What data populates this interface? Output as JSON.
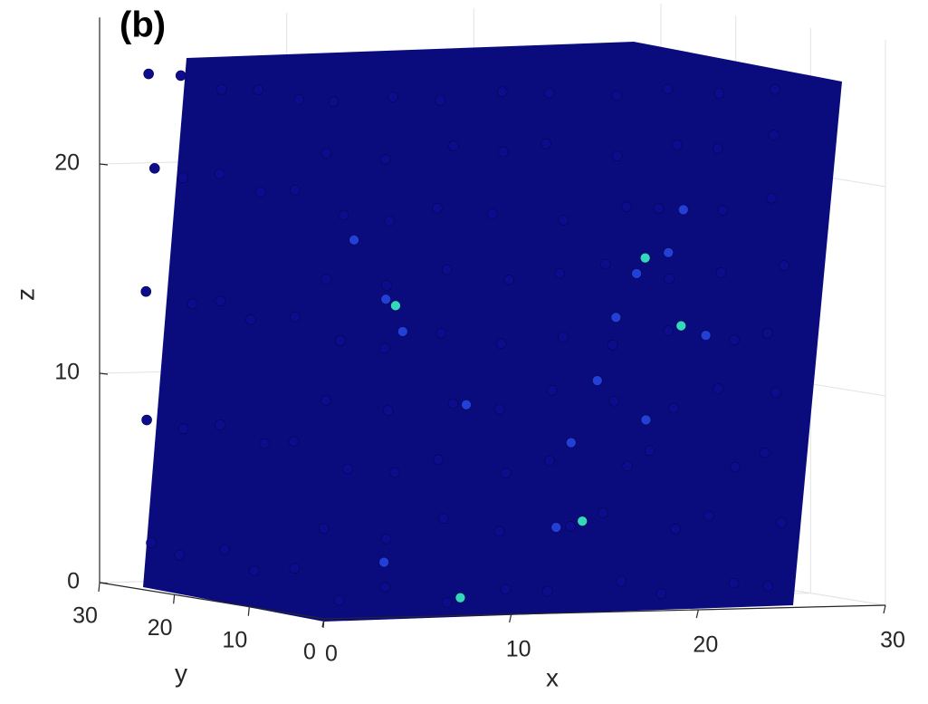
{
  "chart_data": {
    "type": "scatter",
    "title": "(b)",
    "xlabel": "x",
    "ylabel": "y",
    "zlabel": "z",
    "xlim": [
      0,
      30
    ],
    "ylim": [
      0,
      30
    ],
    "zlim": [
      0,
      27
    ],
    "xticks": [
      0,
      10,
      20,
      30
    ],
    "yticks": [
      0,
      10,
      20,
      30
    ],
    "zticks": [
      0,
      10,
      20
    ],
    "grid": true,
    "series": [
      {
        "color": "#0c0c8c",
        "x": [
          1.2,
          4.1,
          6.8,
          10.3,
          12.9,
          16.2,
          18.7,
          22.1,
          24.6,
          0.7,
          3.6,
          7.3,
          9.8,
          13.4,
          15.7,
          19.3,
          21.6,
          24.8,
          1.5,
          4.4,
          6.5,
          10.6,
          12.6,
          16.5,
          18.4,
          22.4,
          24.3,
          0.9,
          3.9,
          7.1,
          10.1,
          13.1,
          15.9,
          19.0,
          21.9,
          24.7,
          1.3,
          4.2,
          6.9,
          9.7,
          13.3,
          16.3,
          18.8,
          22.2,
          24.5,
          0.8,
          3.7,
          7.4,
          10.4,
          12.8,
          15.8,
          19.4,
          21.7,
          24.9,
          1.4,
          4.3,
          6.6,
          9.9,
          13.2,
          16.4,
          18.6,
          22.3,
          24.4,
          1.0,
          3.8,
          7.2,
          10.2,
          12.7,
          16.1,
          19.1,
          21.8,
          24.6,
          1.1,
          4.0,
          7.0,
          10.0,
          13.0,
          16.0,
          19.0,
          22.0,
          24.5,
          0.5,
          0.3,
          0.8,
          0.2,
          0.6,
          0.3,
          0.7,
          0.4,
          0.6,
          0.2,
          0.6,
          0.2,
          0.5,
          0.8,
          0.4,
          0.4,
          0.6,
          0.3,
          0.5,
          0.7,
          0.7,
          0.4,
          0.6,
          0.3,
          0.5
        ],
        "y": [
          1.0,
          2.1,
          0.6,
          1.5,
          2.4,
          0.8,
          1.7,
          0.5,
          2.2,
          1.8,
          0.7,
          2.3,
          1.1,
          0.6,
          2.0,
          1.3,
          2.6,
          0.9,
          0.6,
          1.6,
          1.0,
          2.2,
          1.4,
          0.7,
          2.5,
          1.1,
          1.9,
          2.0,
          1.2,
          0.5,
          1.8,
          2.3,
          1.0,
          0.8,
          2.1,
          1.4,
          1.1,
          2.4,
          1.6,
          0.6,
          1.3,
          2.2,
          1.0,
          0.7,
          2.0,
          1.7,
          0.9,
          2.1,
          1.3,
          0.5,
          1.9,
          2.4,
          1.2,
          0.8,
          0.9,
          2.0,
          1.4,
          2.3,
          1.0,
          0.6,
          1.8,
          2.5,
          1.2,
          2.2,
          1.3,
          0.7,
          1.6,
          2.1,
          1.1,
          0.6,
          1.9,
          1.4,
          1.5,
          0.8,
          2.0,
          1.2,
          2.4,
          0.9,
          1.6,
          2.2,
          1.0,
          5.2,
          10.1,
          15.3,
          19.8,
          24.6,
          4.8,
          9.7,
          14.9,
          20.3,
          24.2,
          5.4,
          10.3,
          15.1,
          19.6,
          24.8,
          4.9,
          10.0,
          14.7,
          20.1,
          24.4,
          5.1,
          9.8,
          15.2,
          19.9,
          24.7
        ],
        "z": [
          0.8,
          1.3,
          0.6,
          1.1,
          0.9,
          1.4,
          0.7,
          1.2,
          0.9,
          4.2,
          3.7,
          4.5,
          3.9,
          4.1,
          4.6,
          3.8,
          4.3,
          4.0,
          7.1,
          6.8,
          7.4,
          6.6,
          7.2,
          6.9,
          7.5,
          6.7,
          7.3,
          10.3,
          9.8,
          10.1,
          9.7,
          10.5,
          10.0,
          9.6,
          10.4,
          10.2,
          13.2,
          12.7,
          13.4,
          12.9,
          13.1,
          12.6,
          13.3,
          12.8,
          13.0,
          16.1,
          15.8,
          16.4,
          15.9,
          16.2,
          16.5,
          15.7,
          16.0,
          16.3,
          19.2,
          18.8,
          19.4,
          19.0,
          18.7,
          19.3,
          19.1,
          18.9,
          19.5,
          22.1,
          21.8,
          22.4,
          22.0,
          22.3,
          21.7,
          22.2,
          21.9,
          22.5,
          24.6,
          24.8,
          24.5,
          24.9,
          24.7,
          24.6,
          24.8,
          24.5,
          24.7,
          2.1,
          1.7,
          2.4,
          1.9,
          2.2,
          8.2,
          7.8,
          8.4,
          7.9,
          8.1,
          14.1,
          13.7,
          14.3,
          13.9,
          14.2,
          20.2,
          19.8,
          20.4,
          19.9,
          20.1,
          24.5,
          24.7,
          24.4,
          24.8,
          24.6
        ]
      },
      {
        "color": "#2240d8",
        "x": [
          4.5,
          5,
          16,
          17.5,
          19,
          20,
          15,
          14,
          13,
          4,
          21,
          18,
          8,
          2
        ],
        "y": [
          3,
          2,
          1,
          2,
          1.5,
          2,
          1,
          2,
          1.5,
          2,
          1.5,
          2,
          1,
          1
        ],
        "z": [
          15,
          13.5,
          14,
          16,
          17,
          19,
          11,
          8,
          4,
          2.5,
          13,
          9,
          10,
          18
        ]
      },
      {
        "color": "#34d6bc",
        "x": [
          4.3,
          14.2,
          17.6,
          19.6,
          7.6
        ],
        "y": [
          1.2,
          1.0,
          1.1,
          1.3,
          0.8
        ],
        "z": [
          14.8,
          4.3,
          16.8,
          13.5,
          0.8
        ]
      }
    ]
  }
}
